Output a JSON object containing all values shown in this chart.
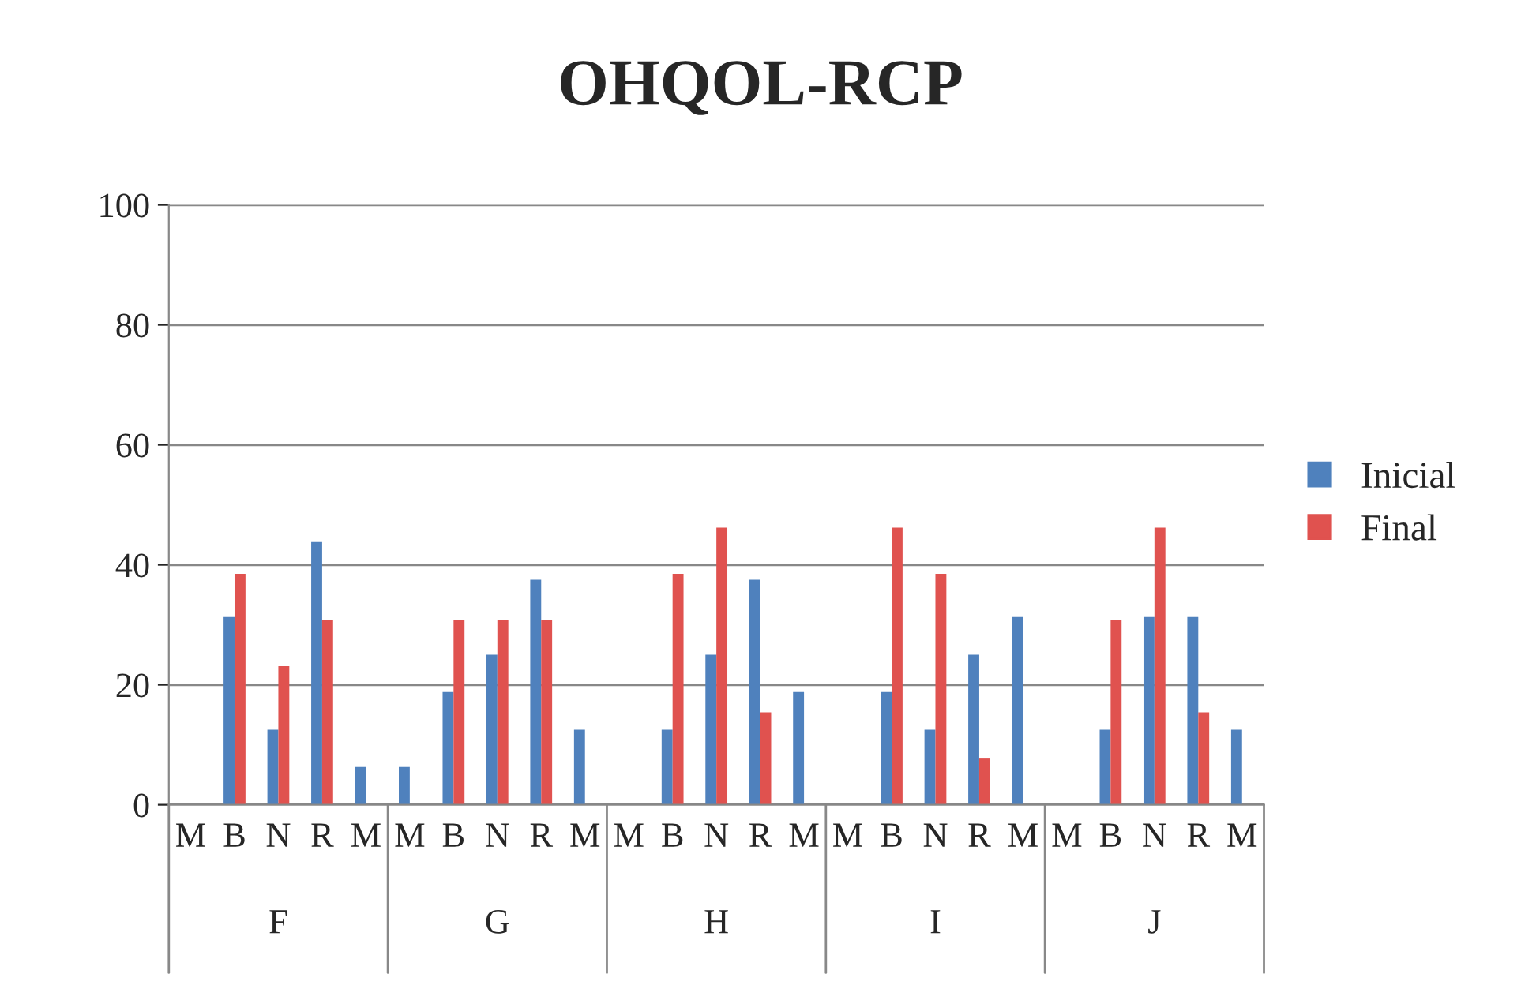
{
  "chart_data": {
    "type": "bar",
    "title": "OHQOL-RCP",
    "categories": [
      "M",
      "B",
      "N",
      "R",
      "M",
      "M",
      "B",
      "N",
      "R",
      "M",
      "M",
      "B",
      "N",
      "R",
      "M",
      "M",
      "B",
      "N",
      "R",
      "M",
      "M",
      "B",
      "N",
      "R",
      "M"
    ],
    "series": [
      {
        "name": "Inicial",
        "color": "#4f81bd",
        "values": [
          0,
          31.3,
          12.5,
          43.8,
          6.3,
          6.3,
          18.8,
          25,
          37.5,
          12.5,
          0,
          12.5,
          25,
          37.5,
          18.8,
          0,
          18.8,
          12.5,
          25,
          31.3,
          0,
          12.5,
          31.3,
          31.3,
          12.5
        ]
      },
      {
        "name": "Final",
        "color": "#e0524f",
        "values": [
          0,
          38.5,
          23.1,
          30.8,
          0,
          0,
          30.8,
          30.8,
          30.8,
          0,
          0,
          38.5,
          46.2,
          15.4,
          0,
          0,
          46.2,
          38.5,
          7.7,
          0,
          0,
          30.8,
          46.2,
          15.4,
          0
        ]
      }
    ],
    "annotations": [
      "F",
      "G",
      "H",
      "I",
      "J"
    ],
    "ylim": [
      0,
      100
    ],
    "yticks": [
      0,
      20,
      40,
      60,
      80,
      100
    ],
    "grid": "y",
    "legend": "right"
  }
}
